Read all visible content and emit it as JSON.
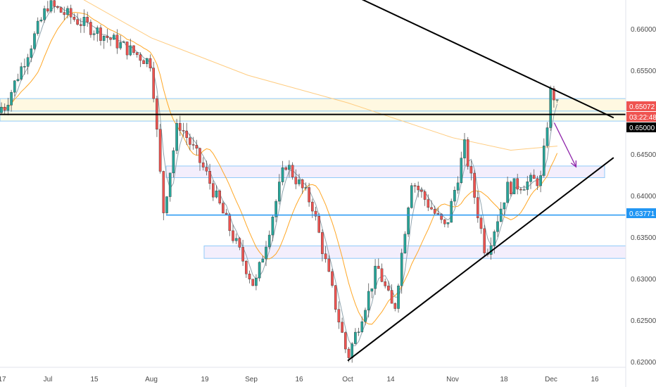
{
  "chart_data": {
    "type": "candlestick",
    "title": "",
    "ylim": [
      0.619,
      0.664
    ],
    "y_ticks": [
      "0.66000",
      "0.65500",
      "0.65000",
      "0.64500",
      "0.64000",
      "0.63500",
      "0.63000",
      "0.62500",
      "0.62000"
    ],
    "x_ticks": [
      "17",
      "Jul",
      "15",
      "Aug",
      "19",
      "Sep",
      "16",
      "Oct",
      "14",
      "Nov",
      "18",
      "Dec",
      "16"
    ],
    "price_tags": [
      {
        "label": "0.65072",
        "value": 0.65072,
        "color": "#ef5350"
      },
      {
        "label": "03:22:48",
        "value": 0.64975,
        "color": "#ef5350"
      },
      {
        "label": "0.65000",
        "value": 0.649,
        "color": "#000000"
      },
      {
        "label": "0.63771",
        "value": 0.63771,
        "color": "#2196f3"
      }
    ],
    "zones": [
      {
        "name": "resistance-zone",
        "from": 0.6502,
        "to": 0.6517,
        "color": "#fff8e1",
        "border": "#90caf9"
      },
      {
        "name": "upper-zone",
        "from": 0.649,
        "to": 0.6502,
        "color": "#fffde7",
        "border": "#90caf9"
      },
      {
        "name": "mid-zone",
        "from": 0.6422,
        "to": 0.6436,
        "color": "#f3eefc",
        "border": "#90caf9"
      },
      {
        "name": "lower-zone",
        "from": 0.6325,
        "to": 0.634,
        "color": "#f3eefc",
        "border": "#90caf9"
      }
    ],
    "levels": [
      {
        "name": "key-level",
        "value": 0.65,
        "color": "#000000"
      },
      {
        "name": "support-level",
        "value": 0.63771,
        "color": "#2196f3"
      }
    ],
    "trendlines": [
      {
        "name": "descending-trendline",
        "from": {
          "date": "Sep 29",
          "price": 0.6648
        },
        "to": {
          "date": "Dec 22",
          "price": 0.6494
        }
      },
      {
        "name": "ascending-trendline",
        "from": {
          "date": "Oct 1",
          "price": 0.6202
        },
        "to": {
          "date": "Dec 22",
          "price": 0.6446
        }
      }
    ],
    "arrow": {
      "from": {
        "date": "Dec 3",
        "price": 0.6488
      },
      "to": {
        "date": "Dec 10",
        "price": 0.6435
      },
      "color": "#8e24aa"
    },
    "series": [
      {
        "name": "price",
        "color_up": "#26a69a",
        "color_down": "#ef5350",
        "description": "daily candles; key closes",
        "values": [
          {
            "date": "Jun 17",
            "close": 0.65
          },
          {
            "date": "Jul 1",
            "close": 0.663
          },
          {
            "date": "Jul 15",
            "close": 0.66
          },
          {
            "date": "Aug 1",
            "close": 0.656
          },
          {
            "date": "Aug 5",
            "close": 0.638
          },
          {
            "date": "Aug 10",
            "close": 0.649
          },
          {
            "date": "Aug 19",
            "close": 0.643
          },
          {
            "date": "Sep 3",
            "close": 0.629
          },
          {
            "date": "Sep 12",
            "close": 0.644
          },
          {
            "date": "Sep 20",
            "close": 0.639
          },
          {
            "date": "Oct 1",
            "close": 0.6205
          },
          {
            "date": "Oct 10",
            "close": 0.6315
          },
          {
            "date": "Oct 15",
            "close": 0.626
          },
          {
            "date": "Oct 20",
            "close": 0.642
          },
          {
            "date": "Oct 30",
            "close": 0.636
          },
          {
            "date": "Nov 5",
            "close": 0.646
          },
          {
            "date": "Nov 12",
            "close": 0.633
          },
          {
            "date": "Nov 19",
            "close": 0.641
          },
          {
            "date": "Nov 29",
            "close": 0.642
          },
          {
            "date": "Dec 2",
            "close": 0.653
          },
          {
            "date": "Dec 4",
            "close": 0.6507
          }
        ]
      },
      {
        "name": "ma-fast",
        "color": "#90a4ae"
      },
      {
        "name": "ma-slow",
        "color": "#ffa726"
      }
    ]
  }
}
